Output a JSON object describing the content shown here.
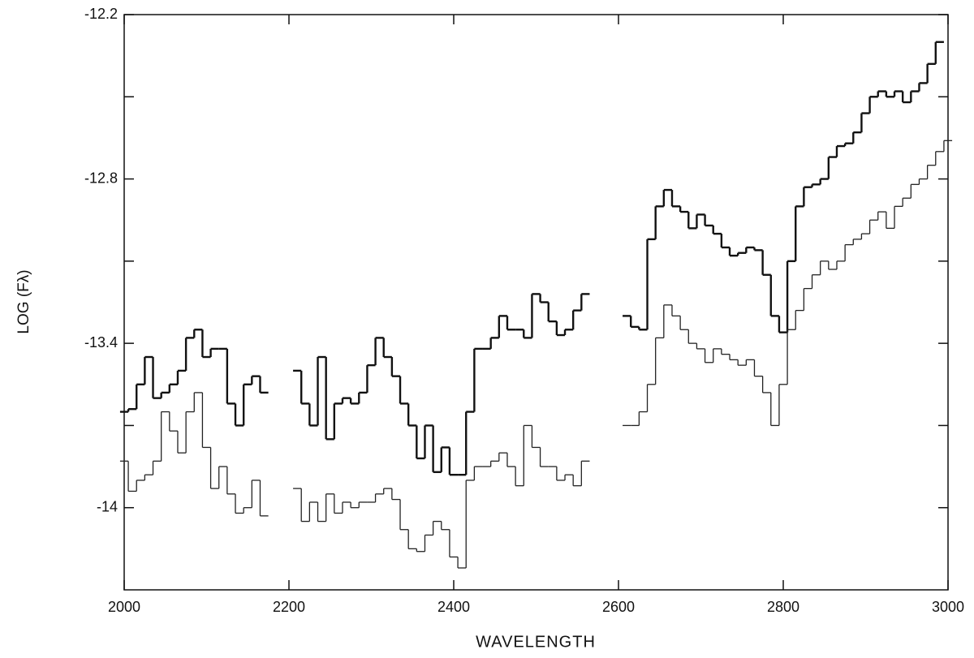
{
  "chart_data": {
    "type": "line",
    "style": "step",
    "xlabel": "WAVELENGTH",
    "ylabel": "LOG (Fλ)",
    "xlim": [
      2000,
      3000
    ],
    "xticks": [
      2000,
      2200,
      2400,
      2600,
      2800,
      3000
    ],
    "ylim": [
      -14.3,
      -12.2
    ],
    "yticks": [
      -12.2,
      -12.8,
      -13.4,
      -14.0
    ],
    "yticks_minor": [
      -12.5,
      -13.1,
      -13.7
    ],
    "x": [
      2000,
      2010,
      2020,
      2030,
      2040,
      2050,
      2060,
      2070,
      2080,
      2090,
      2100,
      2110,
      2120,
      2130,
      2140,
      2150,
      2160,
      2170,
      2180,
      2190,
      2200,
      2210,
      2220,
      2230,
      2240,
      2250,
      2260,
      2270,
      2280,
      2290,
      2300,
      2310,
      2320,
      2330,
      2340,
      2350,
      2360,
      2370,
      2380,
      2390,
      2400,
      2410,
      2420,
      2430,
      2440,
      2450,
      2460,
      2470,
      2480,
      2490,
      2500,
      2510,
      2520,
      2530,
      2540,
      2550,
      2560,
      2570,
      2580,
      2590,
      2600,
      2610,
      2620,
      2630,
      2640,
      2650,
      2660,
      2670,
      2680,
      2690,
      2700,
      2710,
      2720,
      2730,
      2740,
      2750,
      2760,
      2770,
      2780,
      2790,
      2800,
      2810,
      2820,
      2830,
      2840,
      2850,
      2860,
      2870,
      2880,
      2890,
      2900,
      2910,
      2920,
      2930,
      2940,
      2950,
      2960,
      2970,
      2980,
      2990,
      3000
    ],
    "series": [
      {
        "color": "#111111",
        "values": [
          -13.65,
          -13.64,
          -13.55,
          -13.45,
          -13.6,
          -13.58,
          -13.55,
          -13.5,
          -13.38,
          -13.35,
          -13.45,
          -13.42,
          -13.42,
          -13.62,
          -13.7,
          -13.55,
          -13.52,
          -13.58,
          null,
          null,
          null,
          -13.5,
          -13.62,
          -13.7,
          -13.45,
          -13.75,
          -13.62,
          -13.6,
          -13.62,
          -13.58,
          -13.48,
          -13.38,
          -13.45,
          -13.52,
          -13.62,
          -13.7,
          -13.82,
          -13.7,
          -13.87,
          -13.78,
          -13.88,
          -13.88,
          -13.65,
          -13.42,
          -13.42,
          -13.38,
          -13.3,
          -13.35,
          -13.35,
          -13.38,
          -13.22,
          -13.25,
          -13.32,
          -13.37,
          -13.35,
          -13.28,
          -13.22,
          null,
          null,
          null,
          null,
          -13.3,
          -13.34,
          -13.35,
          -13.02,
          -12.9,
          -12.84,
          -12.9,
          -12.92,
          -12.98,
          -12.93,
          -12.97,
          -13.0,
          -13.05,
          -13.08,
          -13.07,
          -13.05,
          -13.06,
          -13.15,
          -13.3,
          -13.36,
          -13.1,
          -12.9,
          -12.83,
          -12.82,
          -12.8,
          -12.72,
          -12.68,
          -12.67,
          -12.63,
          -12.56,
          -12.5,
          -12.48,
          -12.5,
          -12.48,
          -12.52,
          -12.48,
          -12.45,
          -12.38,
          -12.3,
          null
        ]
      },
      {
        "color": "#222222",
        "values": [
          -13.83,
          -13.94,
          -13.9,
          -13.88,
          -13.83,
          -13.65,
          -13.72,
          -13.8,
          -13.65,
          -13.58,
          -13.78,
          -13.93,
          -13.85,
          -13.95,
          -14.02,
          -14.0,
          -13.9,
          -14.03,
          null,
          null,
          null,
          -13.93,
          -14.05,
          -13.98,
          -14.05,
          -13.95,
          -14.02,
          -13.98,
          -14.0,
          -13.98,
          -13.98,
          -13.95,
          -13.93,
          -13.97,
          -14.08,
          -14.15,
          -14.16,
          -14.1,
          -14.05,
          -14.08,
          -14.18,
          -14.22,
          -13.9,
          -13.85,
          -13.85,
          -13.83,
          -13.8,
          -13.85,
          -13.92,
          -13.7,
          -13.78,
          -13.85,
          -13.85,
          -13.9,
          -13.88,
          -13.92,
          -13.83,
          null,
          null,
          null,
          null,
          -13.7,
          -13.7,
          -13.65,
          -13.55,
          -13.38,
          -13.26,
          -13.3,
          -13.35,
          -13.4,
          -13.42,
          -13.47,
          -13.42,
          -13.44,
          -13.46,
          -13.48,
          -13.46,
          -13.52,
          -13.58,
          -13.7,
          -13.55,
          -13.35,
          -13.28,
          -13.2,
          -13.15,
          -13.1,
          -13.13,
          -13.1,
          -13.04,
          -13.02,
          -13.0,
          -12.95,
          -12.92,
          -12.98,
          -12.9,
          -12.87,
          -12.82,
          -12.8,
          -12.75,
          -12.7,
          -12.66
        ]
      }
    ]
  }
}
